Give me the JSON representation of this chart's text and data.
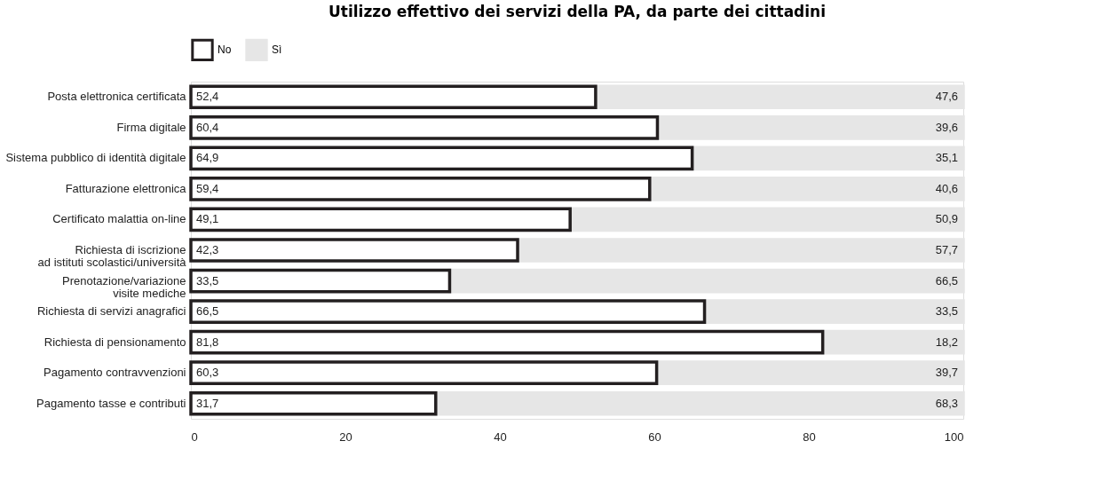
{
  "chart_data": {
    "type": "bar",
    "orientation": "horizontal",
    "stacked": true,
    "title": "Utilizzo effettivo dei servizi della PA, da parte dei cittadini",
    "categories": [
      "Posta elettronica certificata",
      "Firma digitale",
      "Sistema pubblico di identità digitale",
      "Fatturazione elettronica",
      "Certificato malattia on-line",
      "Richiesta di iscrizione\nad istituti scolastici/università",
      "Prenotazione/variazione\nvisite mediche",
      "Richiesta di servizi anagrafici",
      "Richiesta di pensionamento",
      "Pagamento contravvenzioni",
      "Pagamento tasse e contributi"
    ],
    "series": [
      {
        "name": "No",
        "color": "#231f20",
        "values": [
          52.4,
          60.4,
          64.9,
          59.4,
          49.1,
          42.3,
          33.5,
          66.5,
          81.8,
          60.3,
          31.7
        ],
        "value_labels": [
          "52,4",
          "60,4",
          "64,9",
          "59,4",
          "49,1",
          "42,3",
          "33,5",
          "66,5",
          "81,8",
          "60,3",
          "31,7"
        ]
      },
      {
        "name": "Sì",
        "color": "#e6e6e6",
        "values": [
          47.6,
          39.6,
          35.1,
          40.6,
          50.9,
          57.7,
          66.5,
          33.5,
          18.2,
          39.7,
          68.3
        ],
        "value_labels": [
          "47,6",
          "39,6",
          "35,1",
          "40,6",
          "50,9",
          "57,7",
          "66,5",
          "33,5",
          "18,2",
          "39,7",
          "68,3"
        ]
      }
    ],
    "xlim": [
      0,
      100
    ],
    "xticks": [
      0,
      20,
      40,
      60,
      80,
      100
    ],
    "grid": false,
    "legend": "top left"
  }
}
